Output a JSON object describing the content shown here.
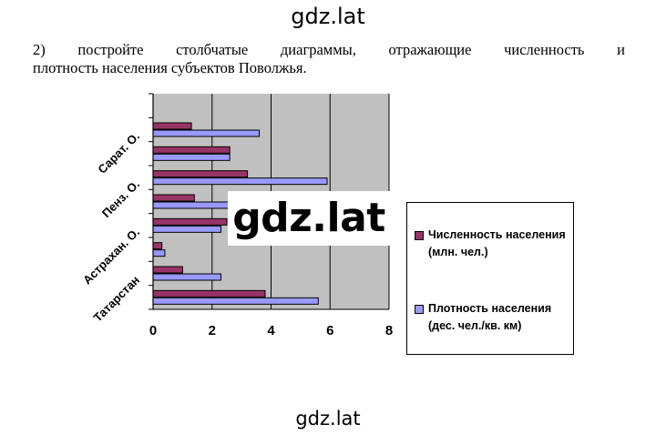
{
  "watermark": {
    "top": "gdz.lat",
    "middle": "gdz.lat",
    "bottom": "gdz.lat"
  },
  "task": {
    "number": "2)",
    "line1_words": [
      "постройте",
      "столбчатые",
      "диаграммы,",
      "отражающие",
      "численность",
      "и"
    ],
    "line2": "плотность населения субъектов Поволжья."
  },
  "chart_data": {
    "type": "bar",
    "orientation": "horizontal",
    "xlim": [
      0,
      8
    ],
    "xticks": [
      "0",
      "2",
      "4",
      "6",
      "8"
    ],
    "grid": true,
    "legend_position": "right",
    "category_labels_shown": [
      "Татарстан",
      "Астрахан. О.",
      "Пенз. О.",
      "Сарат. О."
    ],
    "categories": [
      "",
      "Татарстан",
      "",
      "Астрахан. О.",
      "",
      "Пенз. О.",
      "",
      "Сарат. О.",
      ""
    ],
    "series": [
      {
        "name": "Численность населения (млн. чел.)",
        "color": "#993366",
        "values": [
          3.8,
          1.0,
          0.3,
          2.5,
          1.4,
          3.2,
          2.6,
          1.3,
          0
        ]
      },
      {
        "name": "Плотность населения (дес. чел./кв. км)",
        "color": "#9999ff",
        "values": [
          5.6,
          2.3,
          0.4,
          2.3,
          3.3,
          5.9,
          2.6,
          3.6,
          0
        ]
      }
    ],
    "colors": {
      "plot_bg": "#c0c0c0",
      "grid": "#000000"
    }
  }
}
